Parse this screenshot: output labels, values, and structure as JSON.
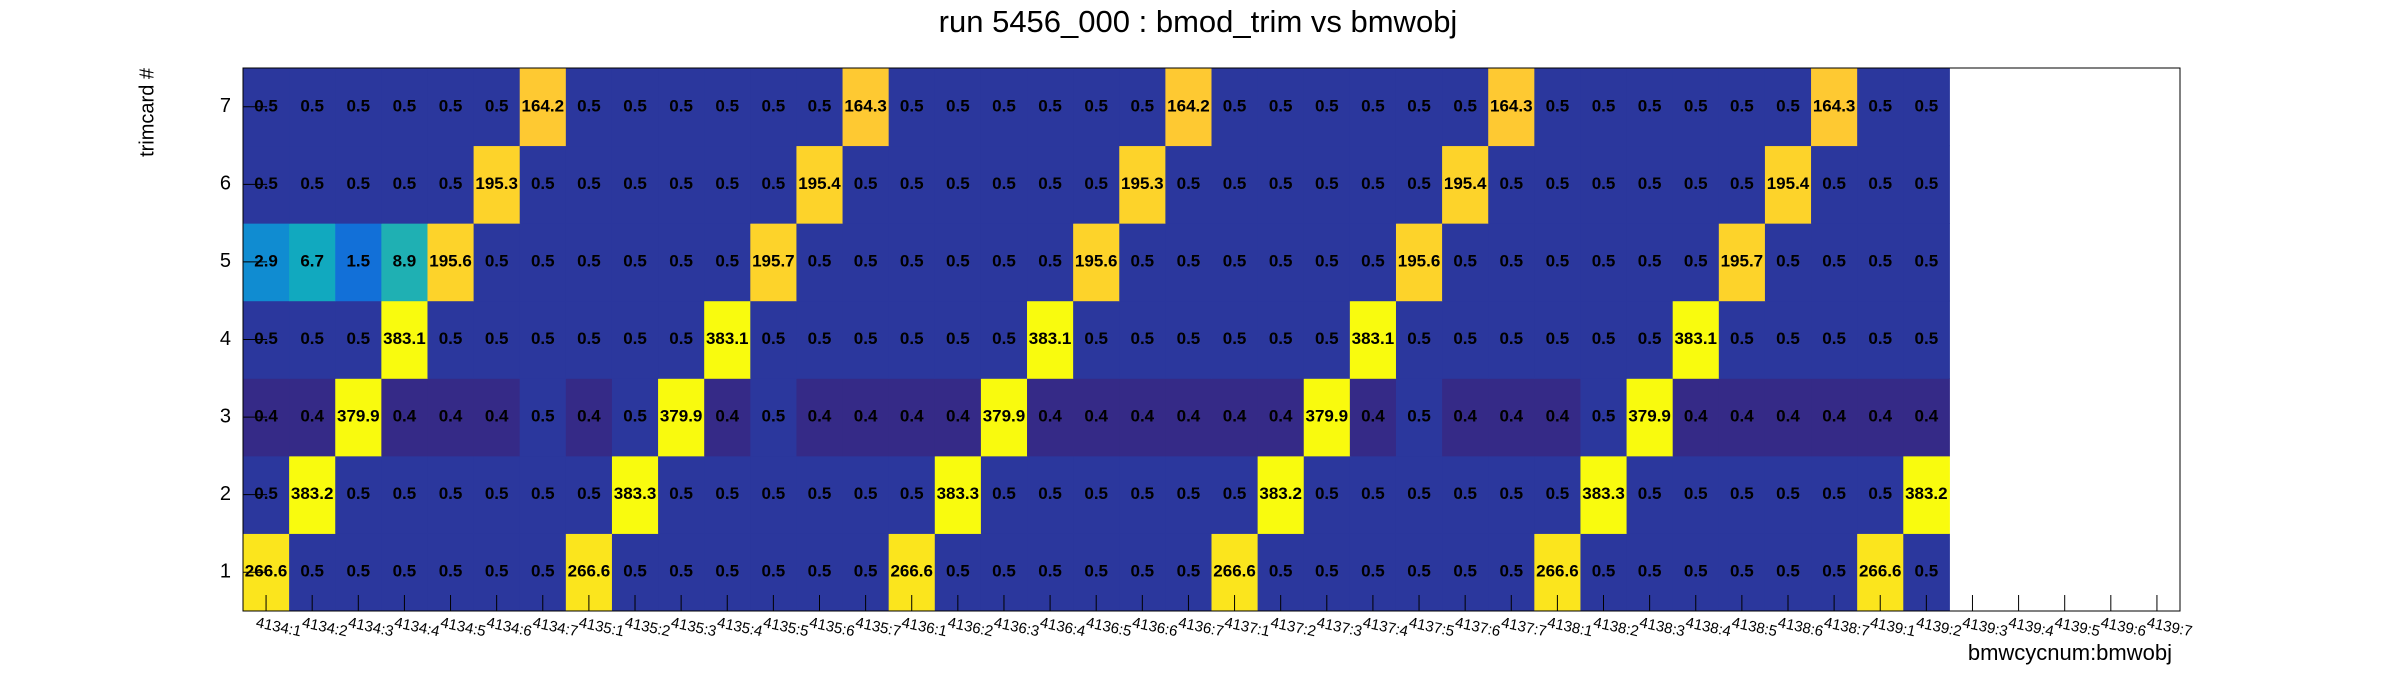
{
  "chart_data": {
    "type": "heatmap",
    "title": "run 5456_000 : bmod_trim vs bmwobj",
    "x_label": "bmwcycnum:bmwobj",
    "y_label": "trimcard #",
    "categories": [
      "4134:1",
      "4134:2",
      "4134:3",
      "4134:4",
      "4134:5",
      "4134:6",
      "4134:7",
      "4135:1",
      "4135:2",
      "4135:3",
      "4135:4",
      "4135:5",
      "4135:6",
      "4135:7",
      "4136:1",
      "4136:2",
      "4136:3",
      "4136:4",
      "4136:5",
      "4136:6",
      "4136:7",
      "4137:1",
      "4137:2",
      "4137:3",
      "4137:4",
      "4137:5",
      "4137:6",
      "4137:7",
      "4138:1",
      "4138:2",
      "4138:3",
      "4138:4",
      "4138:5",
      "4138:6",
      "4138:7",
      "4139:1",
      "4139:2",
      "4139:3",
      "4139:4",
      "4139:5",
      "4139:6",
      "4139:7"
    ],
    "y_categories": [
      1,
      2,
      3,
      4,
      5,
      6,
      7
    ],
    "z": [
      [
        266.6,
        0.5,
        0.5,
        0.5,
        0.5,
        0.5,
        0.5,
        266.6,
        0.5,
        0.5,
        0.5,
        0.5,
        0.5,
        0.5,
        266.6,
        0.5,
        0.5,
        0.5,
        0.5,
        0.5,
        0.5,
        266.6,
        0.5,
        0.5,
        0.5,
        0.5,
        0.5,
        0.5,
        266.6,
        0.5,
        0.5,
        0.5,
        0.5,
        0.5,
        0.5,
        266.6,
        0.5,
        null,
        null,
        null,
        null,
        null
      ],
      [
        0.5,
        383.2,
        0.5,
        0.5,
        0.5,
        0.5,
        0.5,
        0.5,
        383.3,
        0.5,
        0.5,
        0.5,
        0.5,
        0.5,
        0.5,
        383.3,
        0.5,
        0.5,
        0.5,
        0.5,
        0.5,
        0.5,
        383.2,
        0.5,
        0.5,
        0.5,
        0.5,
        0.5,
        0.5,
        383.3,
        0.5,
        0.5,
        0.5,
        0.5,
        0.5,
        0.5,
        383.2,
        null,
        null,
        null,
        null,
        null
      ],
      [
        0.4,
        0.4,
        379.9,
        0.4,
        0.4,
        0.4,
        0.5,
        0.4,
        0.5,
        379.9,
        0.4,
        0.5,
        0.4,
        0.4,
        0.4,
        0.4,
        379.9,
        0.4,
        0.4,
        0.4,
        0.4,
        0.4,
        0.4,
        379.9,
        0.4,
        0.5,
        0.4,
        0.4,
        0.4,
        0.5,
        379.9,
        0.4,
        0.4,
        0.4,
        0.4,
        0.4,
        0.4,
        null,
        null,
        null,
        null,
        null
      ],
      [
        0.5,
        0.5,
        0.5,
        383.1,
        0.5,
        0.5,
        0.5,
        0.5,
        0.5,
        0.5,
        383.1,
        0.5,
        0.5,
        0.5,
        0.5,
        0.5,
        0.5,
        383.1,
        0.5,
        0.5,
        0.5,
        0.5,
        0.5,
        0.5,
        383.1,
        0.5,
        0.5,
        0.5,
        0.5,
        0.5,
        0.5,
        383.1,
        0.5,
        0.5,
        0.5,
        0.5,
        0.5,
        null,
        null,
        null,
        null,
        null
      ],
      [
        2.9,
        6.7,
        1.5,
        8.9,
        195.6,
        0.5,
        0.5,
        0.5,
        0.5,
        0.5,
        0.5,
        195.7,
        0.5,
        0.5,
        0.5,
        0.5,
        0.5,
        0.5,
        195.6,
        0.5,
        0.5,
        0.5,
        0.5,
        0.5,
        0.5,
        195.6,
        0.5,
        0.5,
        0.5,
        0.5,
        0.5,
        0.5,
        195.7,
        0.5,
        0.5,
        0.5,
        0.5,
        null,
        null,
        null,
        null,
        null
      ],
      [
        0.5,
        0.5,
        0.5,
        0.5,
        0.5,
        195.3,
        0.5,
        0.5,
        0.5,
        0.5,
        0.5,
        0.5,
        195.4,
        0.5,
        0.5,
        0.5,
        0.5,
        0.5,
        0.5,
        195.3,
        0.5,
        0.5,
        0.5,
        0.5,
        0.5,
        0.5,
        195.4,
        0.5,
        0.5,
        0.5,
        0.5,
        0.5,
        0.5,
        195.4,
        0.5,
        0.5,
        0.5,
        null,
        null,
        null,
        null,
        null
      ],
      [
        0.5,
        0.5,
        0.5,
        0.5,
        0.5,
        0.5,
        164.2,
        0.5,
        0.5,
        0.5,
        0.5,
        0.5,
        0.5,
        164.3,
        0.5,
        0.5,
        0.5,
        0.5,
        0.5,
        0.5,
        164.2,
        0.5,
        0.5,
        0.5,
        0.5,
        0.5,
        0.5,
        164.3,
        0.5,
        0.5,
        0.5,
        0.5,
        0.5,
        0.5,
        164.3,
        0.5,
        0.5,
        null,
        null,
        null,
        null,
        null
      ]
    ],
    "logz": true,
    "zlim": [
      0.4,
      383.3
    ],
    "palette": [
      "#352a87",
      "#0f5cdd",
      "#1481d4",
      "#06a4ca",
      "#2eb7a4",
      "#87bf77",
      "#d1bb59",
      "#fec832",
      "#f9fb0e"
    ]
  }
}
